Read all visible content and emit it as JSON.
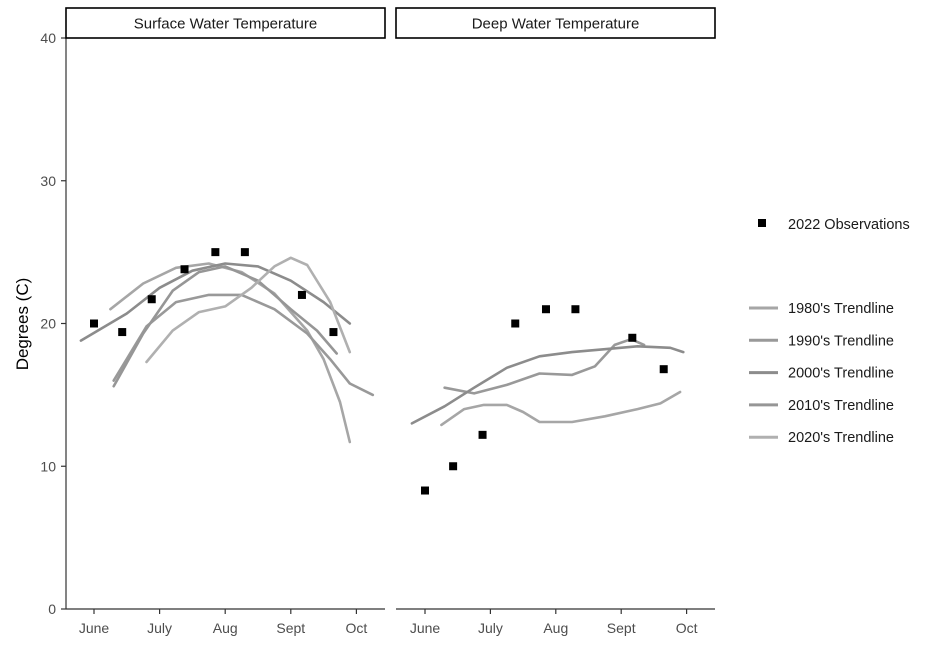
{
  "chart_data": {
    "type": "line",
    "ylabel": "Degrees (C)",
    "ylim": [
      0,
      40
    ],
    "y_ticks": [
      0,
      10,
      20,
      30,
      40
    ],
    "x_ticks": [
      "June",
      "July",
      "Aug",
      "Sept",
      "Oct"
    ],
    "grid": false,
    "legend_position": "right",
    "observations_label": "2022 Observations",
    "colors": {
      "observations": "#000000",
      "1980s": "#a6a6a6",
      "1990s": "#999999",
      "2000s": "#8c8c8c",
      "2010s": "#969696",
      "2020s": "#b0b0b0",
      "axis": "#333333",
      "tick_text": "#4d4d4d"
    },
    "panels": [
      {
        "title": "Surface Water Temperature",
        "observations": [
          {
            "x": 0.0,
            "y": 20.0
          },
          {
            "x": 0.43,
            "y": 19.4
          },
          {
            "x": 0.88,
            "y": 21.7
          },
          {
            "x": 1.38,
            "y": 23.8
          },
          {
            "x": 1.85,
            "y": 25.0
          },
          {
            "x": 2.3,
            "y": 25.0
          },
          {
            "x": 3.17,
            "y": 22.0
          },
          {
            "x": 3.65,
            "y": 19.4
          }
        ],
        "series": [
          {
            "name": "1980's Trendline",
            "key": "1980s",
            "points": [
              [
                0.25,
                21.0
              ],
              [
                0.75,
                22.8
              ],
              [
                1.25,
                23.9
              ],
              [
                1.75,
                24.2
              ],
              [
                2.25,
                23.6
              ],
              [
                2.75,
                22.1
              ],
              [
                3.25,
                19.5
              ],
              [
                3.5,
                17.5
              ],
              [
                3.75,
                14.5
              ],
              [
                3.9,
                11.7
              ]
            ]
          },
          {
            "name": "1990's Trendline",
            "key": "1990s",
            "points": [
              [
                0.3,
                16.0
              ],
              [
                0.8,
                19.8
              ],
              [
                1.25,
                21.5
              ],
              [
                1.75,
                22.0
              ],
              [
                2.25,
                22.0
              ],
              [
                2.75,
                21.0
              ],
              [
                3.25,
                19.3
              ],
              [
                3.6,
                17.5
              ],
              [
                3.9,
                15.8
              ],
              [
                4.25,
                15.0
              ]
            ]
          },
          {
            "name": "2000's Trendline",
            "key": "2000s",
            "points": [
              [
                -0.2,
                18.8
              ],
              [
                0.5,
                20.7
              ],
              [
                1.0,
                22.5
              ],
              [
                1.5,
                23.7
              ],
              [
                2.0,
                24.2
              ],
              [
                2.5,
                24.0
              ],
              [
                3.0,
                23.0
              ],
              [
                3.5,
                21.5
              ],
              [
                3.9,
                20.0
              ]
            ]
          },
          {
            "name": "2010's Trendline",
            "key": "2010s",
            "points": [
              [
                0.3,
                15.6
              ],
              [
                0.75,
                19.3
              ],
              [
                1.2,
                22.3
              ],
              [
                1.6,
                23.6
              ],
              [
                2.0,
                24.0
              ],
              [
                2.5,
                23.0
              ],
              [
                3.0,
                21.0
              ],
              [
                3.4,
                19.5
              ],
              [
                3.7,
                17.9
              ]
            ]
          },
          {
            "name": "2020's Trendline",
            "key": "2020s",
            "points": [
              [
                0.8,
                17.3
              ],
              [
                1.2,
                19.5
              ],
              [
                1.6,
                20.8
              ],
              [
                2.0,
                21.2
              ],
              [
                2.4,
                22.5
              ],
              [
                2.75,
                24.0
              ],
              [
                3.0,
                24.6
              ],
              [
                3.25,
                24.1
              ],
              [
                3.6,
                21.5
              ],
              [
                3.9,
                18.0
              ]
            ]
          }
        ]
      },
      {
        "title": "Deep Water Temperature",
        "observations": [
          {
            "x": 0.0,
            "y": 8.3
          },
          {
            "x": 0.43,
            "y": 10.0
          },
          {
            "x": 0.88,
            "y": 12.2
          },
          {
            "x": 1.38,
            "y": 20.0
          },
          {
            "x": 1.85,
            "y": 21.0
          },
          {
            "x": 2.3,
            "y": 21.0
          },
          {
            "x": 3.17,
            "y": 19.0
          },
          {
            "x": 3.65,
            "y": 16.8
          }
        ],
        "series": [
          {
            "name": "1980's Trendline",
            "key": "1980s",
            "points": [
              [
                0.25,
                12.9
              ],
              [
                0.6,
                14.0
              ],
              [
                0.9,
                14.3
              ],
              [
                1.25,
                14.3
              ],
              [
                1.5,
                13.8
              ],
              [
                1.75,
                13.1
              ],
              [
                2.25,
                13.1
              ],
              [
                2.75,
                13.5
              ],
              [
                3.25,
                14.0
              ],
              [
                3.6,
                14.4
              ],
              [
                3.9,
                15.2
              ]
            ]
          },
          {
            "name": "1990's Trendline",
            "key": "1990s",
            "points": [
              [
                0.3,
                15.5
              ],
              [
                0.75,
                15.1
              ],
              [
                1.25,
                15.7
              ],
              [
                1.75,
                16.5
              ],
              [
                2.25,
                16.4
              ],
              [
                2.6,
                17.0
              ],
              [
                2.9,
                18.5
              ],
              [
                3.15,
                18.9
              ],
              [
                3.35,
                18.5
              ]
            ]
          },
          {
            "name": "2000's Trendline",
            "key": "2000s",
            "points": [
              [
                -0.2,
                13.0
              ],
              [
                0.3,
                14.2
              ],
              [
                0.75,
                15.5
              ],
              [
                1.25,
                16.9
              ],
              [
                1.75,
                17.7
              ],
              [
                2.25,
                18.0
              ],
              [
                2.75,
                18.2
              ],
              [
                3.25,
                18.4
              ],
              [
                3.75,
                18.3
              ],
              [
                3.95,
                18.0
              ]
            ]
          }
        ]
      }
    ],
    "legend": [
      {
        "label": "1980's Trendline",
        "key": "1980s"
      },
      {
        "label": "1990's Trendline",
        "key": "1990s"
      },
      {
        "label": "2000's Trendline",
        "key": "2000s"
      },
      {
        "label": "2010's Trendline",
        "key": "2010s"
      },
      {
        "label": "2020's Trendline",
        "key": "2020s"
      }
    ]
  }
}
